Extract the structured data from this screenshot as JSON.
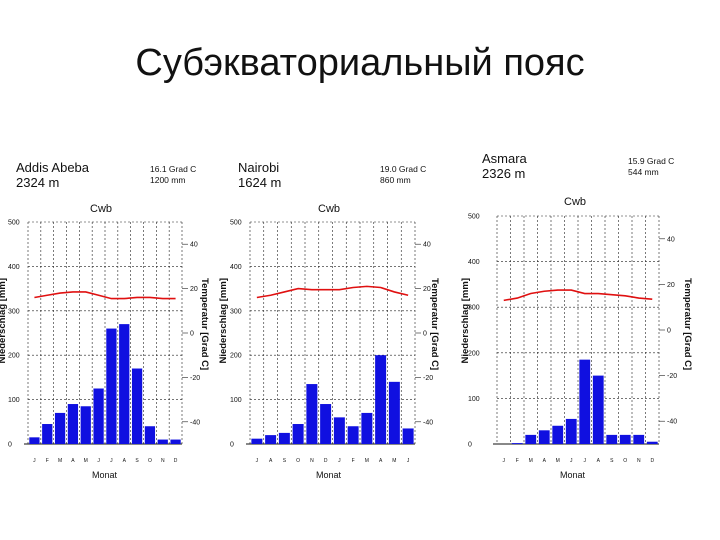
{
  "slide": {
    "title": "Субэкваториальный пояс"
  },
  "chart_data": [
    {
      "type": "bar",
      "station": "Addis Abeba",
      "altitude": "2324 m",
      "annual_temp": "16.1 Grad C",
      "annual_precip": "1200 mm",
      "climate_type": "Cwb",
      "xlabel": "Monat",
      "ylabel": "Niederschlag [mm]",
      "y2label": "Temperatur [Grad C]",
      "categories": [
        "J",
        "F",
        "M",
        "A",
        "M",
        "J",
        "J",
        "A",
        "S",
        "O",
        "N",
        "D"
      ],
      "precip_ticks": [
        "0",
        "100",
        "200",
        "300",
        "400",
        "500"
      ],
      "temp_ticks": [
        "-40",
        "-20",
        "0",
        "20",
        "40"
      ],
      "ylim": [
        0,
        500
      ],
      "y2lim": [
        -50,
        50
      ],
      "series": [
        {
          "name": "Niederschlag",
          "kind": "bar",
          "color": "#1010e0",
          "values": [
            15,
            45,
            70,
            90,
            85,
            125,
            260,
            270,
            170,
            40,
            10,
            10
          ]
        },
        {
          "name": "Temperatur",
          "kind": "line",
          "color": "#e01010",
          "values": [
            16,
            17,
            18,
            18.5,
            18.5,
            17,
            15.5,
            15.5,
            16,
            16,
            15.5,
            15.5
          ]
        }
      ]
    },
    {
      "type": "bar",
      "station": "Nairobi",
      "altitude": "1624 m",
      "annual_temp": "19.0 Grad C",
      "annual_precip": "860 mm",
      "climate_type": "Cwb",
      "xlabel": "Monat",
      "ylabel": "Niederschlag [mm]",
      "y2label": "Temperatur [Grad C]",
      "categories": [
        "J",
        "A",
        "S",
        "O",
        "N",
        "D",
        "J",
        "F",
        "M",
        "A",
        "M",
        "J"
      ],
      "precip_ticks": [
        "0",
        "100",
        "200",
        "300",
        "400",
        "500"
      ],
      "temp_ticks": [
        "-40",
        "-20",
        "0",
        "20",
        "40"
      ],
      "ylim": [
        0,
        500
      ],
      "y2lim": [
        -50,
        50
      ],
      "series": [
        {
          "name": "Niederschlag",
          "kind": "bar",
          "color": "#1010e0",
          "values": [
            12,
            20,
            25,
            45,
            135,
            90,
            60,
            40,
            70,
            200,
            140,
            35
          ]
        },
        {
          "name": "Temperatur",
          "kind": "line",
          "color": "#e01010",
          "values": [
            16,
            17,
            18.5,
            20,
            19.5,
            19.5,
            19.5,
            20.5,
            21,
            20.5,
            18.5,
            17
          ]
        }
      ]
    },
    {
      "type": "bar",
      "station": "Asmara",
      "altitude": "2326 m",
      "annual_temp": "15.9 Grad C",
      "annual_precip": "544 mm",
      "climate_type": "Cwb",
      "xlabel": "Monat",
      "ylabel": "Niederschlag [mm]",
      "y2label": "Temperatur [Grad C]",
      "categories": [
        "J",
        "F",
        "M",
        "A",
        "M",
        "J",
        "J",
        "A",
        "S",
        "O",
        "N",
        "D"
      ],
      "precip_ticks": [
        "0",
        "100",
        "200",
        "300",
        "400",
        "500"
      ],
      "temp_ticks": [
        "-40",
        "-20",
        "0",
        "20",
        "40"
      ],
      "ylim": [
        0,
        500
      ],
      "y2lim": [
        -50,
        50
      ],
      "series": [
        {
          "name": "Niederschlag",
          "kind": "bar",
          "color": "#1010e0",
          "values": [
            0,
            2,
            20,
            30,
            40,
            55,
            185,
            150,
            20,
            20,
            20,
            5
          ]
        },
        {
          "name": "Temperatur",
          "kind": "line",
          "color": "#e01010",
          "values": [
            13,
            14,
            16,
            17,
            17.5,
            17.5,
            16,
            16,
            15.5,
            15,
            14,
            13.5
          ]
        }
      ]
    }
  ]
}
